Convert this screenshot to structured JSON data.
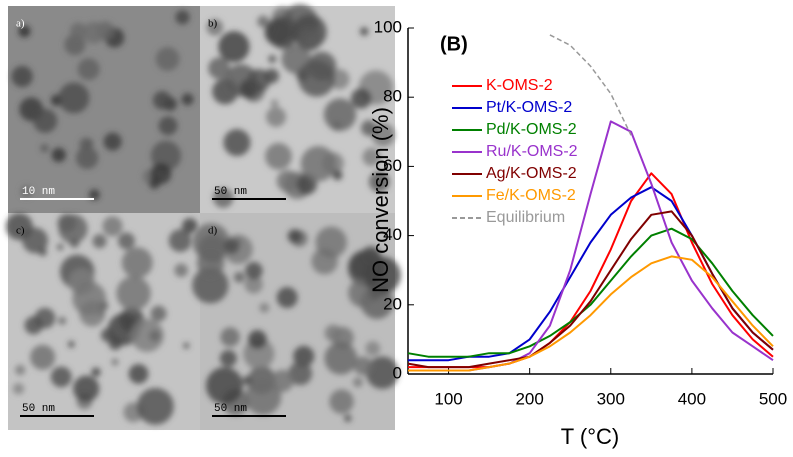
{
  "panels": [
    {
      "label": "a)",
      "scale": "10 nm"
    },
    {
      "label": "b)",
      "scale": "50 nm"
    },
    {
      "label": "c)",
      "scale": "50 nm"
    },
    {
      "label": "d)",
      "scale": "50 nm"
    }
  ],
  "chart_data": {
    "type": "line",
    "panel_label": "(B)",
    "x_label": "T (°C)",
    "y_label": "NO conversion (%)",
    "x": [
      50,
      75,
      100,
      125,
      150,
      175,
      200,
      225,
      250,
      275,
      300,
      325,
      350,
      375,
      400,
      425,
      450,
      475,
      500
    ],
    "xlim": [
      50,
      500
    ],
    "xticks": [
      100,
      200,
      300,
      400,
      500
    ],
    "ylim": [
      0,
      100
    ],
    "yticks": [
      0,
      20,
      40,
      60,
      80,
      100
    ],
    "legend": "upper left",
    "series": [
      {
        "name": "K-OMS-2",
        "color": "#ff0000",
        "values": [
          2,
          2,
          2,
          2,
          2,
          3,
          5,
          9,
          15,
          24,
          36,
          50,
          58,
          52,
          38,
          26,
          17,
          10,
          5
        ]
      },
      {
        "name": "Pt/K-OMS-2",
        "color": "#0000cc",
        "values": [
          4,
          4,
          4,
          5,
          5,
          6,
          10,
          18,
          28,
          38,
          46,
          51,
          54,
          50,
          40,
          29,
          19,
          12,
          7
        ]
      },
      {
        "name": "Pd/K-OMS-2",
        "color": "#008000",
        "values": [
          6,
          5,
          5,
          5,
          6,
          6,
          8,
          11,
          15,
          20,
          27,
          34,
          40,
          42,
          39,
          32,
          24,
          17,
          11
        ]
      },
      {
        "name": "Ru/K-OMS-2",
        "color": "#9933cc",
        "values": [
          1,
          1,
          1,
          1,
          2,
          3,
          6,
          14,
          30,
          52,
          73,
          70,
          55,
          38,
          27,
          19,
          12,
          8,
          4
        ]
      },
      {
        "name": "Ag/K-OMS-2",
        "color": "#800000",
        "values": [
          3,
          2,
          2,
          2,
          3,
          4,
          5,
          9,
          14,
          21,
          30,
          39,
          46,
          47,
          40,
          29,
          19,
          12,
          7
        ]
      },
      {
        "name": "Fe/K-OMS-2",
        "color": "#ff9900",
        "values": [
          1,
          1,
          1,
          1,
          2,
          3,
          5,
          8,
          12,
          17,
          23,
          28,
          32,
          34,
          33,
          28,
          21,
          14,
          8
        ]
      },
      {
        "name": "Equilibrium",
        "color": "#999999",
        "dashed": true,
        "values": [
          null,
          null,
          null,
          null,
          null,
          null,
          null,
          98,
          95,
          89,
          81,
          69,
          null,
          null,
          null,
          null,
          null,
          null,
          null
        ]
      }
    ]
  }
}
